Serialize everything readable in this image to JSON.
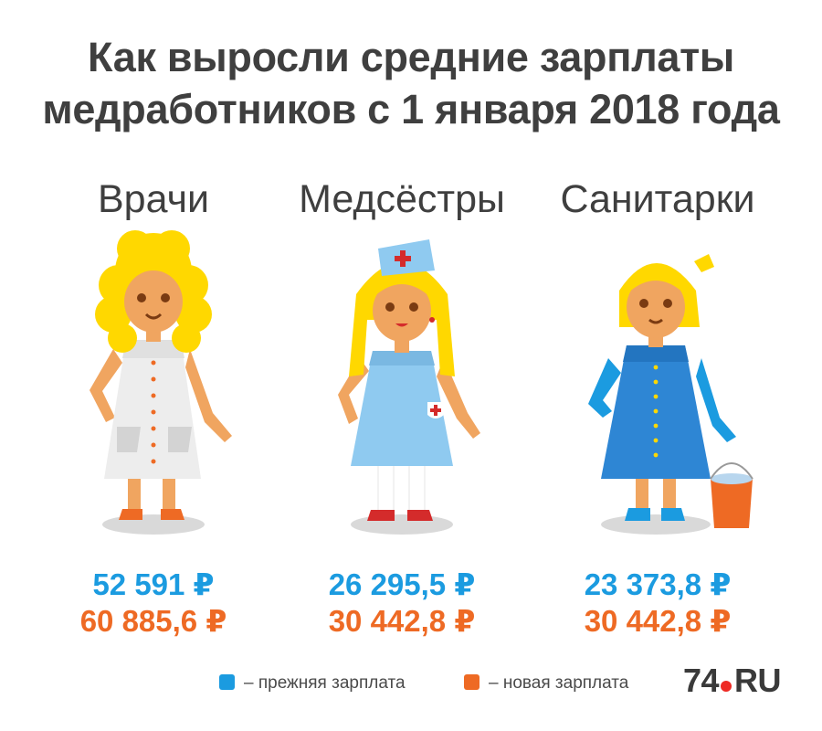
{
  "title": {
    "line1": "Как выросли средние зарплаты",
    "line2": "медработников с 1 января 2018 года"
  },
  "colors": {
    "old": "#1b9be0",
    "new": "#ee6a24"
  },
  "groups": [
    {
      "label": "Врачи",
      "old_salary": "52 591 ₽",
      "new_salary": "60 885,6 ₽"
    },
    {
      "label": "Медсёстры",
      "old_salary": "26 295,5  ₽",
      "new_salary": "30 442,8 ₽"
    },
    {
      "label": "Санитарки",
      "old_salary": "23 373,8  ₽",
      "new_salary": "30 442,8 ₽"
    }
  ],
  "legend": {
    "old_label": "– прежняя зарплата",
    "new_label": "– новая зарплата"
  },
  "logo": {
    "number": "74",
    "suffix": "RU"
  }
}
